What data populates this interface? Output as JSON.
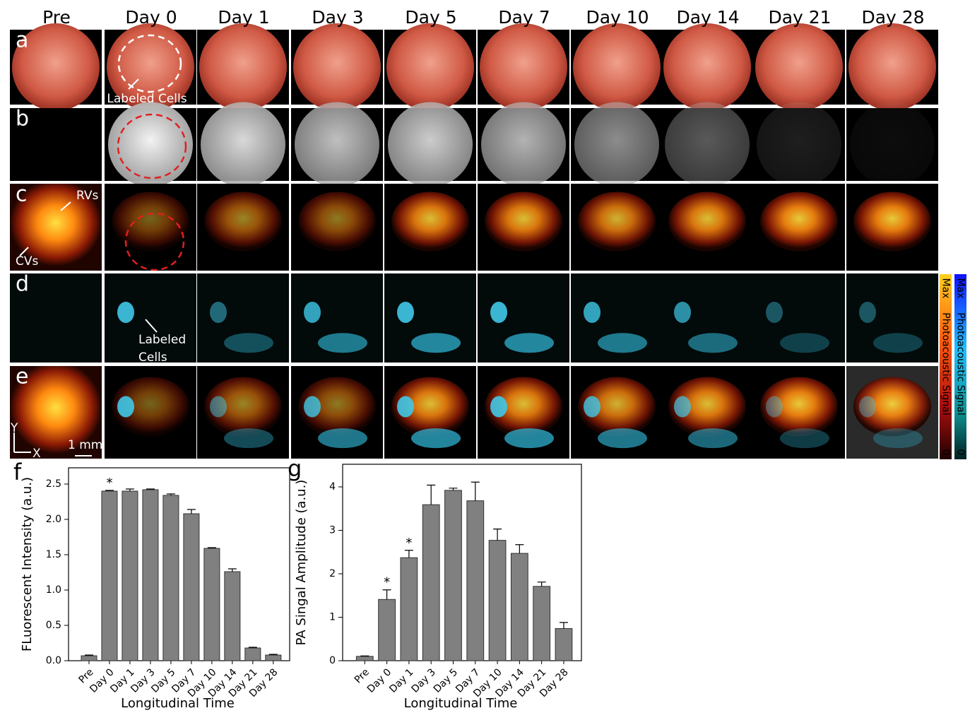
{
  "figure": {
    "columns": [
      "Pre",
      "Day 0",
      "Day 1",
      "Day 3",
      "Day 5",
      "Day 7",
      "Day 10",
      "Day 14",
      "Day 21",
      "Day 28"
    ],
    "rows": [
      "a",
      "b",
      "c",
      "d",
      "e"
    ],
    "annotations": {
      "labeled_cells_a": "Labeled Cells",
      "rvs": "RVs",
      "cvs": "CVs",
      "labeled_cells_d": [
        "Labeled",
        "Cells"
      ],
      "axis_y": "Y",
      "axis_x": "X",
      "scale_bar": "1 mm"
    },
    "colorbars": [
      {
        "max": "Max",
        "label": "Photoacoustic Signal",
        "min": "0"
      },
      {
        "max": "Max",
        "label": "Photoacoustic Signal",
        "min": "0"
      }
    ]
  },
  "chart_data": [
    {
      "type": "bar",
      "panel": "f",
      "x_label": "Longitudinal Time",
      "y_label": "FLuorescent Intensity (a.u.)",
      "categories": [
        "Pre",
        "Day 0",
        "Day 1",
        "Day 3",
        "Day 5",
        "Day 7",
        "Day 10",
        "Day 14",
        "Day 21",
        "Day 28"
      ],
      "values": [
        0.07,
        2.4,
        2.4,
        2.42,
        2.34,
        2.08,
        1.59,
        1.26,
        0.18,
        0.08
      ],
      "errors": [
        0.01,
        0.01,
        0.03,
        0.01,
        0.02,
        0.06,
        0.01,
        0.04,
        0.01,
        0.01
      ],
      "color": "#808080",
      "ylim": [
        0,
        2.73
      ],
      "yticks": [
        {
          "value": 0,
          "label": "0.0"
        },
        0.5,
        {
          "value": 1,
          "label": "1.0"
        },
        1.5,
        {
          "value": 2,
          "label": "2.0"
        },
        2.5
      ],
      "annotations": [
        {
          "text": "*",
          "at": "Day 0"
        }
      ]
    },
    {
      "type": "bar",
      "panel": "g",
      "x_label": "Longitudinal Time",
      "y_label": "PA Singal Amplitude (a.u.)",
      "categories": [
        "Pre",
        "Day 0",
        "Day 1",
        "Day 3",
        "Day 5",
        "Day 7",
        "Day 10",
        "Day 14",
        "Day 21",
        "Day 28"
      ],
      "values": [
        0.1,
        1.41,
        2.37,
        3.59,
        3.92,
        3.68,
        2.77,
        2.47,
        1.71,
        0.74
      ],
      "errors": [
        0.01,
        0.22,
        0.17,
        0.45,
        0.05,
        0.43,
        0.26,
        0.2,
        0.1,
        0.14
      ],
      "color": "#808080",
      "ylim": [
        0,
        4.52
      ],
      "yticks": [
        0,
        1,
        2,
        3,
        4
      ],
      "annotations": [
        {
          "text": "*",
          "at": "Day 0"
        },
        {
          "text": "*",
          "at": "Day 1"
        }
      ]
    }
  ]
}
